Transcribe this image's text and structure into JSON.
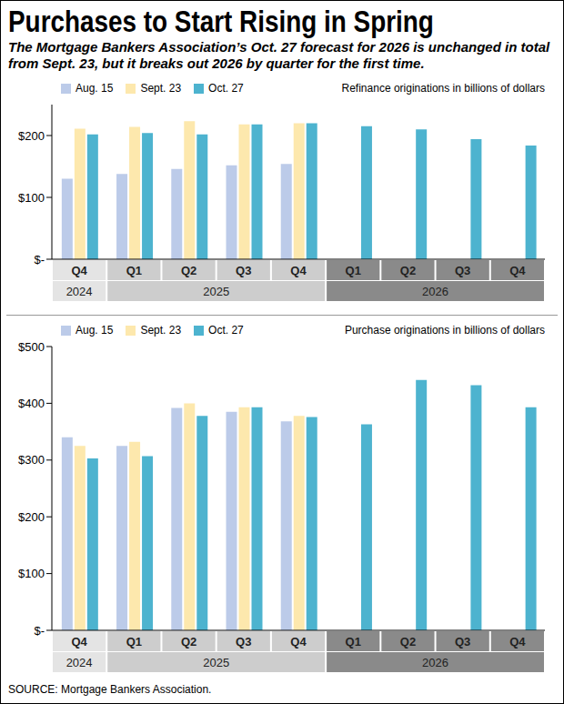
{
  "title": "Purchases to Start Rising in Spring",
  "subtitle": "The Mortgage Bankers Association’s Oct. 27 forecast for 2026 is unchanged in total from Sept. 23, but it breaks out 2026 by quarter for the first time.",
  "source": "SOURCE: Mortgage Bankers Association.",
  "chart_data": [
    {
      "type": "bar",
      "annotation": "Refinance originations in billions of dollars",
      "categories": [
        "Q4",
        "Q1",
        "Q2",
        "Q3",
        "Q4",
        "Q1",
        "Q2",
        "Q3",
        "Q4"
      ],
      "years": [
        "2024",
        "2025",
        "2025",
        "2025",
        "2025",
        "2026",
        "2026",
        "2026",
        "2026"
      ],
      "series": [
        {
          "name": "Aug. 15",
          "color": "#bccbe9",
          "values": [
            130,
            138,
            146,
            152,
            154,
            null,
            null,
            null,
            null
          ]
        },
        {
          "name": "Sept. 23",
          "color": "#fde8ad",
          "values": [
            211,
            214,
            223,
            218,
            220,
            null,
            null,
            null,
            null
          ]
        },
        {
          "name": "Oct. 27",
          "color": "#4db3cf",
          "values": [
            202,
            204,
            202,
            218,
            220,
            215,
            210,
            194,
            184
          ]
        }
      ],
      "ylim": [
        0,
        250
      ],
      "yticks": [
        {
          "value": 0,
          "label": "$-"
        },
        {
          "value": 100,
          "label": "$100"
        },
        {
          "value": 200,
          "label": "$200"
        }
      ],
      "grid": false,
      "legend": "top-left"
    },
    {
      "type": "bar",
      "annotation": "Purchase originations in billions of dollars",
      "categories": [
        "Q4",
        "Q1",
        "Q2",
        "Q3",
        "Q4",
        "Q1",
        "Q2",
        "Q3",
        "Q4"
      ],
      "years": [
        "2024",
        "2025",
        "2025",
        "2025",
        "2025",
        "2026",
        "2026",
        "2026",
        "2026"
      ],
      "series": [
        {
          "name": "Aug. 15",
          "color": "#bccbe9",
          "values": [
            340,
            325,
            392,
            385,
            368,
            null,
            null,
            null,
            null
          ]
        },
        {
          "name": "Sept. 23",
          "color": "#fde8ad",
          "values": [
            325,
            332,
            400,
            393,
            378,
            null,
            null,
            null,
            null
          ]
        },
        {
          "name": "Oct. 27",
          "color": "#4db3cf",
          "values": [
            303,
            307,
            378,
            393,
            376,
            363,
            441,
            432,
            393
          ]
        }
      ],
      "ylim": [
        0,
        500
      ],
      "yticks": [
        {
          "value": 0,
          "label": "$-"
        },
        {
          "value": 100,
          "label": "$100"
        },
        {
          "value": 200,
          "label": "$200"
        },
        {
          "value": 300,
          "label": "$300"
        },
        {
          "value": 400,
          "label": "$400"
        },
        {
          "value": 500,
          "label": "$500"
        }
      ],
      "grid": false,
      "legend": "top-left"
    }
  ]
}
